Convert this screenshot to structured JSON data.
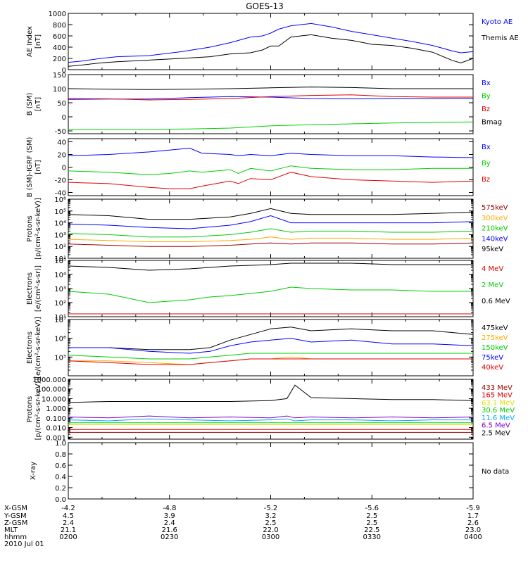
{
  "title": "GOES-13",
  "colors": {
    "black": "#000000",
    "blue": "#0000ff",
    "green": "#00cc00",
    "red": "#e00000",
    "orange": "#ffaa00",
    "darkred": "#990000",
    "yellow": "#dddd00",
    "cyan": "#00a8ff",
    "purple": "#8000c0"
  },
  "chart_data": [
    {
      "type": "line",
      "id": "ae",
      "ylabel": [
        "AE Index",
        "[nT]"
      ],
      "scale": "linear",
      "ylim": [
        0,
        1000
      ],
      "yticks": [
        0,
        200,
        400,
        600,
        800,
        1000
      ],
      "tick_labels": [
        "0",
        "200",
        "400",
        "600",
        "800",
        "1000"
      ],
      "x": [
        0,
        0.03,
        0.08,
        0.12,
        0.2,
        0.28,
        0.35,
        0.4,
        0.45,
        0.48,
        0.5,
        0.52,
        0.55,
        0.6,
        0.65,
        0.7,
        0.75,
        0.8,
        0.85,
        0.9,
        0.95,
        0.97,
        1.0
      ],
      "series": [
        {
          "name": "Kyoto AE",
          "color": "blue",
          "values": [
            130,
            150,
            200,
            230,
            250,
            320,
            400,
            480,
            580,
            600,
            650,
            720,
            780,
            820,
            760,
            680,
            620,
            560,
            500,
            430,
            330,
            300,
            320
          ]
        },
        {
          "name": "Themis AE",
          "color": "black",
          "values": [
            60,
            80,
            120,
            140,
            170,
            200,
            230,
            280,
            300,
            350,
            420,
            420,
            580,
            620,
            560,
            520,
            450,
            430,
            380,
            310,
            160,
            120,
            200
          ]
        }
      ]
    },
    {
      "type": "line",
      "id": "bsm",
      "ylabel": [
        "B (SM)",
        "[nT]"
      ],
      "scale": "linear",
      "ylim": [
        -60,
        150
      ],
      "yticks": [
        -50,
        0,
        50,
        100,
        150
      ],
      "tick_labels": [
        "-50",
        "0",
        "50",
        "100",
        "150"
      ],
      "x": [
        0,
        0.1,
        0.2,
        0.3,
        0.4,
        0.5,
        0.6,
        0.7,
        0.8,
        0.9,
        1.0
      ],
      "series": [
        {
          "name": "Bx",
          "color": "blue",
          "values": [
            62,
            63,
            63,
            68,
            72,
            70,
            65,
            64,
            65,
            65,
            66
          ]
        },
        {
          "name": "By",
          "color": "green",
          "values": [
            -45,
            -45,
            -45,
            -43,
            -40,
            -32,
            -28,
            -25,
            -22,
            -20,
            -18
          ]
        },
        {
          "name": "Bz",
          "color": "red",
          "values": [
            65,
            64,
            60,
            62,
            65,
            72,
            76,
            78,
            72,
            70,
            70
          ]
        },
        {
          "name": "Bmag",
          "color": "black",
          "values": [
            100,
            98,
            97,
            98,
            100,
            103,
            106,
            104,
            100,
            100,
            100
          ]
        }
      ]
    },
    {
      "type": "line",
      "id": "bigrf",
      "ylabel": [
        "B (SM)-IGRF (SM)",
        "[nT]"
      ],
      "scale": "linear",
      "ylim": [
        -45,
        45
      ],
      "yticks": [
        -40,
        -20,
        0,
        20,
        40
      ],
      "tick_labels": [
        "-40",
        "-20",
        "0",
        "20",
        "40"
      ],
      "x": [
        0,
        0.1,
        0.2,
        0.25,
        0.3,
        0.33,
        0.4,
        0.42,
        0.45,
        0.5,
        0.55,
        0.6,
        0.7,
        0.8,
        0.9,
        1.0
      ],
      "series": [
        {
          "name": "Bx",
          "color": "blue",
          "values": [
            18,
            20,
            24,
            27,
            30,
            22,
            20,
            18,
            20,
            18,
            22,
            20,
            18,
            18,
            16,
            15
          ]
        },
        {
          "name": "By",
          "color": "green",
          "values": [
            -6,
            -8,
            -12,
            -10,
            -6,
            -8,
            -4,
            -10,
            -2,
            -6,
            2,
            -2,
            -4,
            -4,
            -2,
            -2
          ]
        },
        {
          "name": "Bz",
          "color": "red",
          "values": [
            -24,
            -26,
            -32,
            -34,
            -34,
            -30,
            -22,
            -26,
            -18,
            -20,
            -8,
            -15,
            -20,
            -22,
            -24,
            -22
          ]
        }
      ]
    },
    {
      "type": "line",
      "id": "protons1",
      "ylabel": [
        "Protons",
        "[p/(cm²-s-sr-keV)]"
      ],
      "scale": "log",
      "ylim": [
        1,
        6
      ],
      "yticks": [
        1,
        2,
        3,
        4,
        5,
        6
      ],
      "tick_labels": [
        "10¹",
        "10²",
        "10³",
        "10⁴",
        "10⁵",
        "10⁶"
      ],
      "x": [
        0,
        0.1,
        0.2,
        0.3,
        0.4,
        0.45,
        0.5,
        0.55,
        0.6,
        0.7,
        0.8,
        0.9,
        1.0
      ],
      "series": [
        {
          "name": "575keV",
          "color": "darkred",
          "values": [
            2.2,
            2.1,
            2.0,
            2.0,
            2.1,
            2.2,
            2.3,
            2.2,
            2.3,
            2.3,
            2.2,
            2.2,
            2.3
          ]
        },
        {
          "name": "300keV",
          "color": "orange",
          "values": [
            2.6,
            2.5,
            2.4,
            2.4,
            2.5,
            2.6,
            2.8,
            2.6,
            2.7,
            2.7,
            2.6,
            2.6,
            2.7
          ]
        },
        {
          "name": "210keV",
          "color": "green",
          "values": [
            3.1,
            3.0,
            2.8,
            2.8,
            3.0,
            3.2,
            3.5,
            3.2,
            3.3,
            3.3,
            3.2,
            3.2,
            3.3
          ]
        },
        {
          "name": "140keV",
          "color": "blue",
          "values": [
            3.9,
            3.8,
            3.6,
            3.5,
            3.8,
            4.1,
            4.6,
            4.0,
            4.0,
            4.0,
            4.0,
            4.0,
            4.1
          ]
        },
        {
          "name": "95keV",
          "color": "black",
          "values": [
            4.7,
            4.6,
            4.3,
            4.3,
            4.5,
            4.8,
            5.2,
            4.8,
            4.7,
            4.7,
            4.7,
            4.8,
            4.9
          ]
        }
      ]
    },
    {
      "type": "line",
      "id": "electrons1",
      "ylabel": [
        "Electrons",
        "[e/(cm²-s-sr)]"
      ],
      "scale": "log",
      "ylim": [
        1,
        5
      ],
      "yticks": [
        1,
        2,
        3,
        4,
        5
      ],
      "tick_labels": [
        "10¹",
        "10²",
        "10³",
        "10⁴",
        "10⁵"
      ],
      "x": [
        0,
        0.1,
        0.2,
        0.3,
        0.35,
        0.4,
        0.5,
        0.55,
        0.6,
        0.7,
        0.8,
        0.9,
        1.0
      ],
      "series": [
        {
          "name": "4 MeV",
          "color": "red",
          "values": [
            1.2,
            1.2,
            1.2,
            1.2,
            1.2,
            1.2,
            1.2,
            1.2,
            1.2,
            1.2,
            1.2,
            1.2,
            1.2
          ]
        },
        {
          "name": "2 MeV",
          "color": "green",
          "values": [
            2.8,
            2.6,
            2.0,
            2.2,
            2.4,
            2.5,
            2.8,
            3.1,
            3.0,
            2.9,
            2.9,
            2.8,
            2.8
          ]
        },
        {
          "name": "0.6 MeV",
          "color": "black",
          "values": [
            4.6,
            4.5,
            4.3,
            4.4,
            4.5,
            4.6,
            4.7,
            4.8,
            4.8,
            4.8,
            4.7,
            4.7,
            4.7
          ]
        }
      ]
    },
    {
      "type": "line",
      "id": "electrons2",
      "ylabel": [
        "Electrons",
        "[e/(cm²-s-sr-keV)]"
      ],
      "scale": "log",
      "ylim": [
        4,
        7
      ],
      "yticks": [
        5,
        6,
        7
      ],
      "tick_labels": [
        "10⁵",
        "10⁶",
        "10⁷"
      ],
      "x": [
        0,
        0.1,
        0.2,
        0.3,
        0.35,
        0.4,
        0.45,
        0.5,
        0.55,
        0.6,
        0.7,
        0.8,
        0.9,
        1.0
      ],
      "series": [
        {
          "name": "475keV",
          "color": "black",
          "values": [
            5.5,
            5.5,
            5.4,
            5.4,
            5.5,
            5.9,
            6.2,
            6.5,
            6.6,
            6.4,
            6.5,
            6.4,
            6.4,
            6.2
          ]
        },
        {
          "name": "275keV",
          "color": "orange",
          "values": [
            4.8,
            4.8,
            4.7,
            4.6,
            4.7,
            4.8,
            4.9,
            4.9,
            5.0,
            4.9,
            4.9,
            4.9,
            4.9,
            4.9
          ]
        },
        {
          "name": "150keV",
          "color": "green",
          "values": [
            5.1,
            5.0,
            4.9,
            4.9,
            5.0,
            5.1,
            5.2,
            5.2,
            5.2,
            5.2,
            5.2,
            5.2,
            5.2,
            5.2
          ]
        },
        {
          "name": "75keV",
          "color": "blue",
          "values": [
            5.5,
            5.5,
            5.3,
            5.2,
            5.3,
            5.6,
            5.8,
            5.9,
            6.0,
            5.8,
            5.9,
            5.7,
            5.7,
            5.6
          ]
        },
        {
          "name": "40keV",
          "color": "red",
          "values": [
            4.8,
            4.7,
            4.6,
            4.6,
            4.7,
            4.8,
            4.9,
            4.9,
            4.9,
            4.9,
            4.9,
            4.9,
            4.9,
            4.9
          ]
        }
      ]
    },
    {
      "type": "line",
      "id": "protons2",
      "ylabel": [
        "Protons",
        "[p/(cm²-s-sr-keV)]"
      ],
      "scale": "log",
      "ylim": [
        -3.2,
        3
      ],
      "yticks": [
        -3,
        -2,
        -1,
        0,
        1,
        2,
        3
      ],
      "tick_labels": [
        "0.001",
        "0.010",
        "0.100",
        "1.000",
        "10.000",
        "100.000",
        "1000.000"
      ],
      "x": [
        0,
        0.1,
        0.2,
        0.3,
        0.4,
        0.5,
        0.54,
        0.56,
        0.6,
        0.7,
        0.8,
        0.9,
        1.0
      ],
      "series": [
        {
          "name": "433 MeV",
          "color": "darkred",
          "values": [
            -2.5,
            -2.5,
            -2.5,
            -2.5,
            -2.5,
            -2.5,
            -2.5,
            -2.5,
            -2.5,
            -2.5,
            -2.5,
            -2.5,
            -2.5
          ]
        },
        {
          "name": "165 MeV",
          "color": "red",
          "values": [
            -2.2,
            -2.2,
            -2.2,
            -2.2,
            -2.2,
            -2.2,
            -2.2,
            -2.2,
            -2.2,
            -2.2,
            -2.2,
            -2.2,
            -2.2
          ]
        },
        {
          "name": "63.1 MeV",
          "color": "yellow",
          "values": [
            -1.7,
            -1.7,
            -1.7,
            -1.7,
            -1.7,
            -1.7,
            -1.7,
            -1.7,
            -1.7,
            -1.7,
            -1.7,
            -1.7,
            -1.7
          ]
        },
        {
          "name": "30.6 MeV",
          "color": "green",
          "values": [
            -1.5,
            -1.5,
            -1.5,
            -1.5,
            -1.5,
            -1.5,
            -1.5,
            -1.5,
            -1.5,
            -1.5,
            -1.5,
            -1.5,
            -1.5
          ]
        },
        {
          "name": "11.6 MeV",
          "color": "cyan",
          "values": [
            -1.2,
            -1.3,
            -1.1,
            -1.2,
            -1.3,
            -1.2,
            -1.1,
            -1.3,
            -1.2,
            -1.2,
            -1.3,
            -1.2,
            -1.2
          ]
        },
        {
          "name": "6.5 MeV",
          "color": "purple",
          "values": [
            -0.9,
            -1.0,
            -0.8,
            -1.0,
            -0.9,
            -1.0,
            -0.8,
            -1.0,
            -0.9,
            -1.0,
            -0.9,
            -1.0,
            -0.9
          ]
        },
        {
          "name": "2.5 MeV",
          "color": "black",
          "values": [
            0.6,
            0.7,
            0.7,
            0.7,
            0.7,
            0.8,
            1.0,
            2.4,
            1.1,
            1.0,
            0.9,
            0.9,
            0.8
          ]
        }
      ]
    },
    {
      "type": "line",
      "id": "xray",
      "ylabel": [
        "X-ray"
      ],
      "scale": "linear",
      "ylim": [
        0,
        1
      ],
      "yticks": [
        0,
        0.2,
        0.4,
        0.6,
        0.8,
        1.0
      ],
      "tick_labels": [
        "0.0",
        "0.2",
        "0.4",
        "0.6",
        "0.8",
        "1.0"
      ],
      "x": [],
      "series": [],
      "no_data_label": "No data"
    }
  ],
  "footer": {
    "row_labels": [
      "X-GSM",
      "Y-GSM",
      "Z-GSM",
      "MLT",
      "hhmm",
      "2010 Jul 01"
    ],
    "columns": [
      {
        "x": 0.0,
        "values": [
          "-4.2",
          "4.5",
          "2.4",
          "21.1",
          "0200"
        ]
      },
      {
        "x": 0.25,
        "values": [
          "-4.8",
          "3.9",
          "2.4",
          "21.6",
          "0230"
        ]
      },
      {
        "x": 0.5,
        "values": [
          "-5.2",
          "3.2",
          "2.5",
          "22.0",
          "0300"
        ]
      },
      {
        "x": 0.75,
        "values": [
          "-5.6",
          "2.5",
          "2.5",
          "22.5",
          "0330"
        ]
      },
      {
        "x": 1.0,
        "values": [
          "-5.9",
          "1.7",
          "2.6",
          "23.0",
          "0400"
        ]
      }
    ]
  }
}
